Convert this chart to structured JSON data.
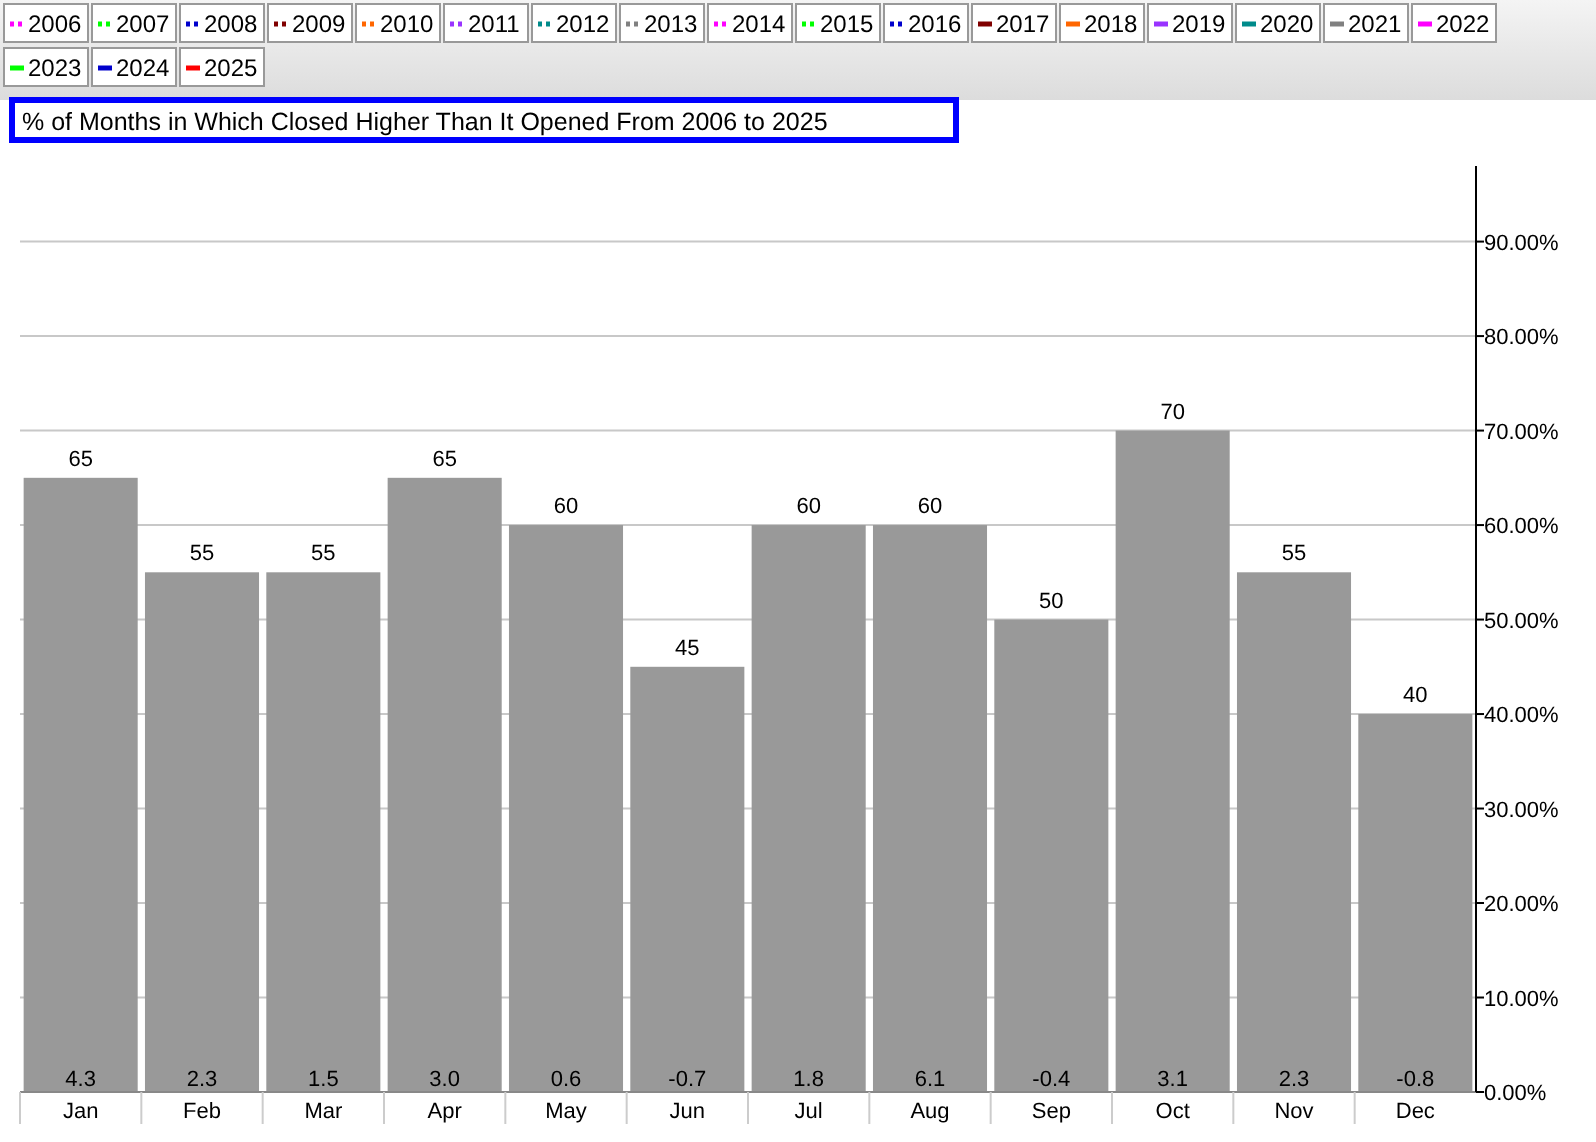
{
  "chart_data": {
    "type": "bar",
    "title": "% of Months in Which Closed Higher Than It Opened From 2006 to 2025",
    "categories": [
      "Jan",
      "Feb",
      "Mar",
      "Apr",
      "May",
      "Jun",
      "Jul",
      "Aug",
      "Sep",
      "Oct",
      "Nov",
      "Dec"
    ],
    "series": [
      {
        "color": "#999999",
        "values": [
          65,
          55,
          55,
          65,
          60,
          45,
          60,
          60,
          50,
          70,
          55,
          40
        ]
      },
      {
        "type": "line",
        "name": "2006",
        "color": "#ff00ff",
        "line_style": "dotted",
        "values": [
          null,
          null,
          null,
          null,
          null,
          null,
          null,
          null,
          null,
          null,
          null,
          null
        ]
      },
      {
        "type": "line",
        "name": "2007",
        "color": "#00ff00",
        "line_style": "dotted",
        "values": [
          null,
          null,
          null,
          null,
          null,
          null,
          null,
          null,
          null,
          null,
          null,
          null
        ]
      },
      {
        "type": "line",
        "name": "2008",
        "color": "#0000cc",
        "line_style": "dotted",
        "values": [
          null,
          null,
          null,
          null,
          null,
          null,
          null,
          null,
          null,
          null,
          null,
          null
        ]
      },
      {
        "type": "line",
        "name": "2009",
        "color": "#800000",
        "line_style": "dotted",
        "values": [
          null,
          null,
          null,
          null,
          null,
          null,
          null,
          null,
          null,
          null,
          null,
          null
        ]
      },
      {
        "type": "line",
        "name": "2010",
        "color": "#ff6600",
        "line_style": "dotted",
        "values": [
          null,
          null,
          null,
          null,
          null,
          null,
          null,
          null,
          null,
          null,
          null,
          null
        ]
      },
      {
        "type": "line",
        "name": "2011",
        "color": "#9933ff",
        "line_style": "dotted",
        "values": [
          null,
          null,
          null,
          null,
          null,
          null,
          null,
          null,
          null,
          null,
          null,
          null
        ]
      },
      {
        "type": "line",
        "name": "2012",
        "color": "#008b8b",
        "line_style": "dotted",
        "values": [
          null,
          null,
          null,
          null,
          null,
          null,
          null,
          null,
          null,
          null,
          null,
          null
        ]
      },
      {
        "type": "line",
        "name": "2013",
        "color": "#808080",
        "line_style": "dotted",
        "values": [
          null,
          null,
          null,
          null,
          null,
          null,
          null,
          null,
          null,
          null,
          null,
          null
        ]
      },
      {
        "type": "line",
        "name": "2014",
        "color": "#ff00ff",
        "line_style": "dotted",
        "values": [
          null,
          null,
          null,
          null,
          null,
          null,
          null,
          null,
          null,
          null,
          null,
          null
        ]
      },
      {
        "type": "line",
        "name": "2015",
        "color": "#00ff00",
        "line_style": "dotted",
        "values": [
          null,
          null,
          null,
          null,
          null,
          null,
          null,
          null,
          null,
          null,
          null,
          null
        ]
      },
      {
        "type": "line",
        "name": "2016",
        "color": "#0000cc",
        "line_style": "dotted",
        "values": [
          null,
          null,
          null,
          null,
          null,
          null,
          null,
          null,
          null,
          null,
          null,
          null
        ]
      },
      {
        "type": "line",
        "name": "2017",
        "color": "#800000",
        "line_style": "solid",
        "values": [
          null,
          null,
          null,
          null,
          null,
          null,
          null,
          null,
          null,
          null,
          null,
          null
        ]
      },
      {
        "type": "line",
        "name": "2018",
        "color": "#ff6600",
        "line_style": "solid",
        "values": [
          null,
          null,
          null,
          null,
          null,
          null,
          null,
          null,
          null,
          null,
          null,
          null
        ]
      },
      {
        "type": "line",
        "name": "2019",
        "color": "#9933ff",
        "line_style": "solid",
        "values": [
          null,
          null,
          null,
          null,
          null,
          null,
          null,
          null,
          null,
          null,
          null,
          null
        ]
      },
      {
        "type": "line",
        "name": "2020",
        "color": "#008b8b",
        "line_style": "solid",
        "values": [
          null,
          null,
          null,
          null,
          null,
          null,
          null,
          null,
          null,
          null,
          null,
          null
        ]
      },
      {
        "type": "line",
        "name": "2021",
        "color": "#808080",
        "line_style": "solid",
        "values": [
          null,
          null,
          null,
          null,
          null,
          null,
          null,
          null,
          null,
          null,
          null,
          null
        ]
      },
      {
        "type": "line",
        "name": "2022",
        "color": "#ff00ff",
        "line_style": "solid",
        "values": [
          null,
          null,
          null,
          null,
          null,
          null,
          null,
          null,
          null,
          null,
          null,
          null
        ]
      },
      {
        "type": "line",
        "name": "2023",
        "color": "#00ff00",
        "line_style": "solid",
        "values": [
          null,
          null,
          null,
          null,
          null,
          null,
          null,
          null,
          null,
          null,
          null,
          null
        ]
      },
      {
        "type": "line",
        "name": "2024",
        "color": "#0000cc",
        "line_style": "solid",
        "values": [
          null,
          null,
          null,
          null,
          null,
          null,
          null,
          null,
          null,
          null,
          null,
          null
        ]
      },
      {
        "type": "line",
        "name": "2025",
        "color": "#ff0000",
        "line_style": "solid",
        "values": [
          null,
          null,
          null,
          null,
          null,
          null,
          null,
          null,
          null,
          null,
          null,
          null
        ]
      }
    ],
    "ylim": [
      0,
      98
    ],
    "yticks": [
      {
        "value": 0,
        "label": "0.00%"
      },
      {
        "value": 10,
        "label": "10.00%"
      },
      {
        "value": 20,
        "label": "20.00%"
      },
      {
        "value": 30,
        "label": "30.00%"
      },
      {
        "value": 40,
        "label": "40.00%"
      },
      {
        "value": 50,
        "label": "50.00%"
      },
      {
        "value": 60,
        "label": "60.00%"
      },
      {
        "value": 70,
        "label": "70.00%"
      },
      {
        "value": 80,
        "label": "80.00%"
      },
      {
        "value": 90,
        "label": "90.00%"
      }
    ],
    "grid": "y",
    "legend": "top",
    "data_labels": true,
    "annotations": [
      "4.3",
      "2.3",
      "1.5",
      "3.0",
      "0.6",
      "-0.7",
      "1.8",
      "6.1",
      "-0.4",
      "3.1",
      "2.3",
      "-0.8"
    ]
  }
}
